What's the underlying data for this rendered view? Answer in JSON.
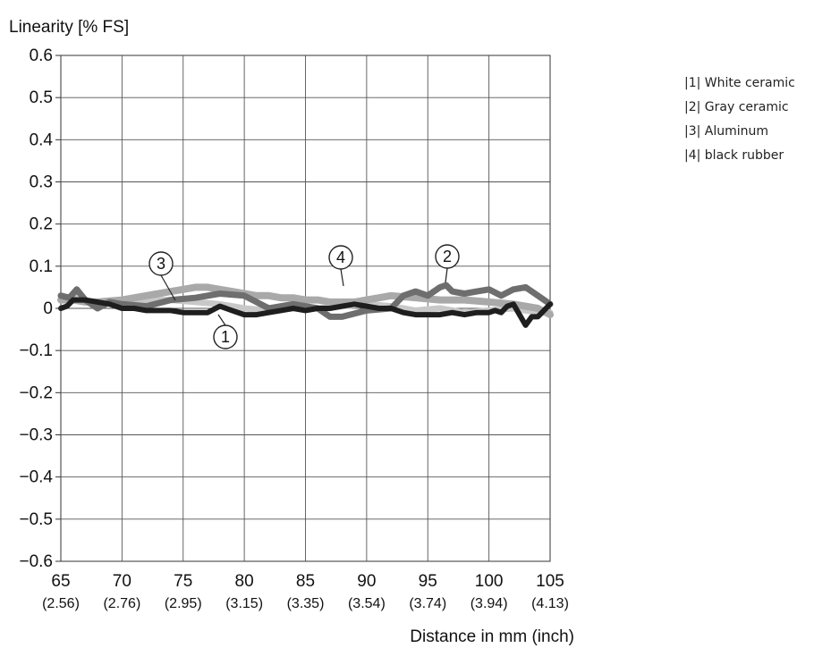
{
  "chart_data": {
    "type": "line",
    "ylabel": "Linearity [% FS]",
    "xlabel": "Distance in mm (inch)",
    "ylim": [
      -0.6,
      0.6
    ],
    "xlim": [
      65,
      105
    ],
    "yticks": [
      "0.6",
      "0.5",
      "0.4",
      "0.3",
      "0.2",
      "0.1",
      "0",
      "-0.1",
      "-0.2",
      "-0.3",
      "-0.4",
      "-0.5",
      "-0.6"
    ],
    "xticks": [
      {
        "mm": "65",
        "inch": "(2.56)"
      },
      {
        "mm": "70",
        "inch": "(2.76)"
      },
      {
        "mm": "75",
        "inch": "(2.95)"
      },
      {
        "mm": "80",
        "inch": "(3.15)"
      },
      {
        "mm": "85",
        "inch": "(3.35)"
      },
      {
        "mm": "90",
        "inch": "(3.54)"
      },
      {
        "mm": "95",
        "inch": "(3.74)"
      },
      {
        "mm": "100",
        "inch": "(3.94)"
      },
      {
        "mm": "105",
        "inch": "(4.13)"
      }
    ],
    "grid": true,
    "legend_position": "right",
    "series": [
      {
        "name": "|1| White ceramic",
        "color": "#c8c8c8",
        "callout": "",
        "x": [
          65,
          66,
          67,
          68,
          70,
          72,
          74,
          76,
          78,
          80,
          82,
          84,
          86,
          88,
          90,
          92,
          94,
          96,
          98,
          100,
          102,
          104,
          105
        ],
        "y": [
          0.02,
          0.03,
          0.015,
          0.01,
          0.015,
          0.02,
          0.02,
          0.015,
          0.01,
          0.0,
          -0.005,
          0.0,
          0.0,
          0.005,
          0.01,
          0.005,
          -0.005,
          0.0,
          -0.01,
          -0.005,
          0.0,
          -0.01,
          -0.01
        ]
      },
      {
        "name": "|2| Gray ceramic",
        "color": "#6e6e6e",
        "callout": "2",
        "x": [
          65,
          65.7,
          66.3,
          67,
          68,
          69,
          70,
          72,
          74,
          76,
          78,
          80,
          82,
          84,
          86,
          87,
          88,
          90,
          92,
          93,
          94,
          95,
          96,
          96.5,
          97,
          98,
          99,
          100,
          101,
          102,
          103,
          104,
          105
        ],
        "y": [
          0.03,
          0.025,
          0.045,
          0.02,
          0.0,
          0.015,
          0.01,
          0.005,
          0.02,
          0.025,
          0.035,
          0.03,
          0.0,
          0.01,
          0.0,
          -0.02,
          -0.02,
          -0.005,
          0.0,
          0.03,
          0.04,
          0.03,
          0.05,
          0.055,
          0.04,
          0.035,
          0.04,
          0.045,
          0.03,
          0.045,
          0.05,
          0.03,
          0.01
        ]
      },
      {
        "name": "|3| Aluminum",
        "color": "#a9a9a9",
        "callout": "3",
        "x": [
          65,
          66,
          67,
          68,
          70,
          71,
          72,
          73,
          74,
          75,
          76,
          77,
          78,
          79,
          80,
          81,
          82,
          83,
          84,
          85,
          86,
          87,
          88,
          89,
          90,
          91,
          92,
          94,
          96,
          98,
          100,
          102,
          104,
          105
        ],
        "y": [
          0.02,
          0.02,
          0.015,
          0.015,
          0.02,
          0.025,
          0.03,
          0.035,
          0.04,
          0.045,
          0.05,
          0.05,
          0.045,
          0.04,
          0.035,
          0.03,
          0.03,
          0.025,
          0.025,
          0.02,
          0.02,
          0.015,
          0.015,
          0.015,
          0.02,
          0.025,
          0.03,
          0.025,
          0.02,
          0.02,
          0.015,
          0.01,
          0.0,
          -0.015
        ]
      },
      {
        "name": "|4| black rubber",
        "color": "#1e1e1e",
        "callout": "1",
        "x": [
          65,
          65.5,
          66,
          67,
          68,
          69,
          70,
          71,
          72,
          73,
          74,
          75,
          76,
          77,
          78,
          79,
          80,
          81,
          82,
          83,
          84,
          85,
          86,
          87,
          88,
          89,
          90,
          91,
          92,
          93,
          94,
          95,
          96,
          97,
          98,
          99,
          100,
          100.5,
          101,
          101.5,
          102,
          102.5,
          103,
          103.5,
          104,
          105
        ],
        "y": [
          0.0,
          0.005,
          0.02,
          0.02,
          0.015,
          0.01,
          0.0,
          0.0,
          -0.005,
          -0.005,
          -0.005,
          -0.01,
          -0.01,
          -0.01,
          0.005,
          -0.005,
          -0.015,
          -0.015,
          -0.01,
          -0.005,
          0.0,
          -0.005,
          0.0,
          0.0,
          0.005,
          0.01,
          0.005,
          0.0,
          0.0,
          -0.01,
          -0.015,
          -0.015,
          -0.015,
          -0.01,
          -0.015,
          -0.01,
          -0.01,
          -0.005,
          -0.01,
          0.005,
          0.01,
          -0.015,
          -0.04,
          -0.02,
          -0.02,
          0.01
        ]
      }
    ],
    "callouts_extra": {
      "label": "4",
      "series_index": 2
    }
  },
  "legend": {
    "items": [
      "|1| White ceramic",
      "|2| Gray ceramic",
      "|3| Aluminum",
      "|4| black rubber"
    ]
  }
}
